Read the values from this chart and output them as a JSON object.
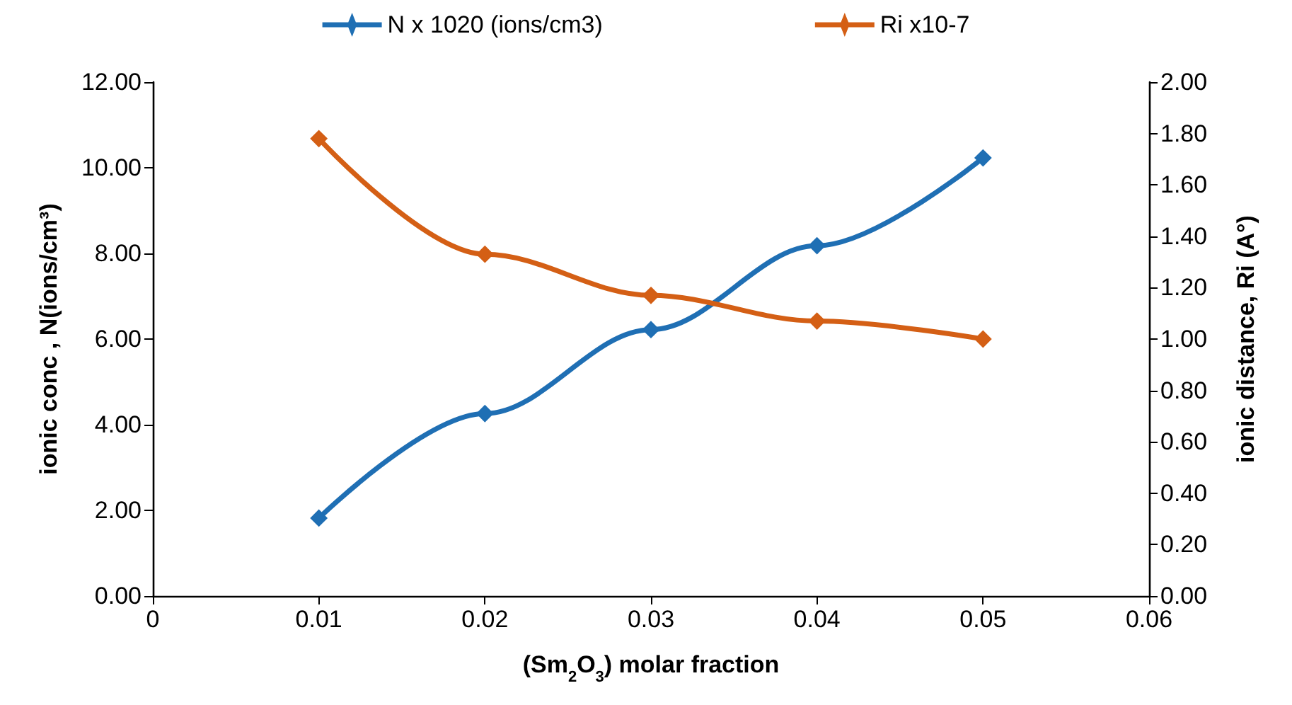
{
  "chart_data": {
    "type": "line",
    "xlabel": "(Sm$_{2}$O$_{3}$) molar fraction",
    "ylabel": "ionic conc , N(ions/cm³)",
    "y2label": "ionic distance, Ri (A°)",
    "x": [
      0.01,
      0.02,
      0.03,
      0.04,
      0.05
    ],
    "series": [
      {
        "name": "N x 1020 (ions/cm3)",
        "color": "#1f6fb4",
        "values": [
          1.82,
          4.26,
          6.22,
          8.18,
          10.23
        ]
      },
      {
        "name": "Ri x10-7",
        "color": "#d45f15",
        "axis": "y2",
        "values": [
          1.78,
          1.33,
          1.17,
          1.07,
          1.0
        ]
      }
    ],
    "xlim": [
      0,
      0.06
    ],
    "xticks": [
      0,
      0.01,
      0.02,
      0.03,
      0.04,
      0.05,
      0.06
    ],
    "ylim": [
      0,
      12
    ],
    "yticks": [
      {
        "value": 0,
        "label": "0.00"
      },
      {
        "value": 2,
        "label": "2.00"
      },
      {
        "value": 4,
        "label": "4.00"
      },
      {
        "value": 6,
        "label": "6.00"
      },
      {
        "value": 8,
        "label": "8.00"
      },
      {
        "value": 10,
        "label": "10.00"
      },
      {
        "value": 12,
        "label": "12.00"
      }
    ],
    "y2lim": [
      0,
      2
    ],
    "y2ticks": [
      {
        "value": 0,
        "label": "0.00"
      },
      {
        "value": 0.2,
        "label": "0.20"
      },
      {
        "value": 0.4,
        "label": "0.40"
      },
      {
        "value": 0.6,
        "label": "0.60"
      },
      {
        "value": 0.8,
        "label": "0.80"
      },
      {
        "value": 1,
        "label": "1.00"
      },
      {
        "value": 1.2,
        "label": "1.20"
      },
      {
        "value": 1.4,
        "label": "1.40"
      },
      {
        "value": 1.6,
        "label": "1.60"
      },
      {
        "value": 1.8,
        "label": "1.80"
      },
      {
        "value": 2,
        "label": "2.00"
      }
    ],
    "grid": false,
    "legend": "top",
    "marker": "diamond",
    "line_style": "solid"
  }
}
